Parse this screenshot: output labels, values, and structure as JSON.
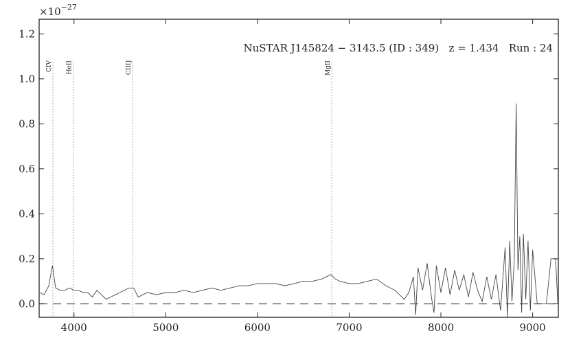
{
  "chart_data": {
    "type": "line",
    "title": "NuSTAR J145824 − 3143.5 (ID : 349)   z = 1.434   Run : 24",
    "offset_text": {
      "base": "×10",
      "exponent": "−27"
    },
    "color": "#444444",
    "x": [
      3625,
      3675,
      3725,
      3765,
      3800,
      3850,
      3900,
      3950,
      4000,
      4050,
      4100,
      4150,
      4200,
      4250,
      4300,
      4350,
      4400,
      4450,
      4500,
      4550,
      4600,
      4650,
      4700,
      4750,
      4800,
      4900,
      5000,
      5100,
      5200,
      5300,
      5400,
      5500,
      5600,
      5700,
      5800,
      5900,
      6000,
      6100,
      6200,
      6300,
      6400,
      6500,
      6600,
      6700,
      6800,
      6850,
      6900,
      7000,
      7100,
      7200,
      7300,
      7400,
      7500,
      7600,
      7650,
      7700,
      7725,
      7750,
      7800,
      7850,
      7900,
      7925,
      7950,
      8000,
      8050,
      8100,
      8150,
      8200,
      8250,
      8300,
      8350,
      8400,
      8450,
      8500,
      8550,
      8600,
      8650,
      8700,
      8725,
      8750,
      8775,
      8800,
      8820,
      8840,
      8860,
      8880,
      8900,
      8925,
      8950,
      8975,
      9000,
      9050,
      9100,
      9150,
      9200,
      9250,
      9275
    ],
    "values": [
      0.05,
      0.04,
      0.08,
      0.17,
      0.07,
      0.06,
      0.06,
      0.07,
      0.06,
      0.06,
      0.05,
      0.05,
      0.03,
      0.06,
      0.04,
      0.02,
      0.03,
      0.04,
      0.05,
      0.06,
      0.07,
      0.07,
      0.03,
      0.04,
      0.05,
      0.04,
      0.05,
      0.05,
      0.06,
      0.05,
      0.06,
      0.07,
      0.06,
      0.07,
      0.08,
      0.08,
      0.09,
      0.09,
      0.09,
      0.08,
      0.09,
      0.1,
      0.1,
      0.11,
      0.13,
      0.11,
      0.1,
      0.09,
      0.09,
      0.1,
      0.11,
      0.08,
      0.06,
      0.02,
      0.05,
      0.12,
      -0.05,
      0.16,
      0.06,
      0.18,
      0.02,
      -0.04,
      0.17,
      0.05,
      0.16,
      0.04,
      0.15,
      0.06,
      0.13,
      0.03,
      0.14,
      0.06,
      0.01,
      0.12,
      0.02,
      0.13,
      -0.03,
      0.25,
      -0.06,
      0.28,
      0.01,
      0.2,
      0.89,
      0.15,
      0.3,
      -0.04,
      0.31,
      0.02,
      0.28,
      -0.03,
      0.24,
      0,
      0,
      0,
      0.2,
      0.2,
      0
    ],
    "reference_line": 0,
    "lines": [
      {
        "label": "CIV",
        "x": 3770
      },
      {
        "label": "HeII",
        "x": 3990
      },
      {
        "label": "CIII]",
        "x": 4640
      },
      {
        "label": "MgII",
        "x": 6810
      }
    ],
    "xlim": [
      3620,
      9280
    ],
    "ylim": [
      -0.06,
      1.265
    ],
    "xticks": [
      4000,
      5000,
      6000,
      7000,
      8000,
      9000
    ],
    "yticks": [
      {
        "value": 0,
        "label": "0.0"
      },
      {
        "value": 0.2,
        "label": "0.2"
      },
      {
        "value": 0.4,
        "label": "0.4"
      },
      {
        "value": 0.6,
        "label": "0.6"
      },
      {
        "value": 0.8,
        "label": "0.8"
      },
      {
        "value": 1.0,
        "label": "1.0"
      },
      {
        "value": 1.2,
        "label": "1.2"
      }
    ]
  }
}
